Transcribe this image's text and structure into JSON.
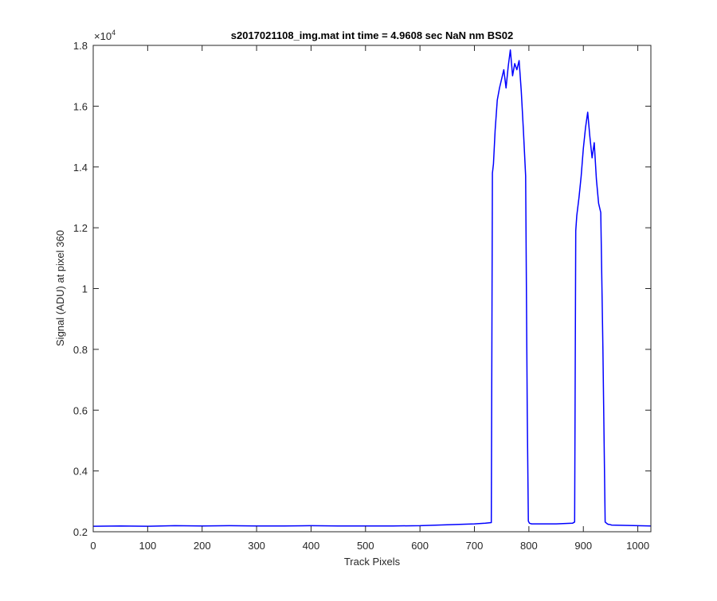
{
  "chart_data": {
    "type": "line",
    "title": "s2017021108_img.mat int time = 4.9608 sec  NaN nm BS02",
    "xlabel": "Track Pixels",
    "ylabel": "Signal (ADU) at pixel 360",
    "xlim": [
      0,
      1024
    ],
    "ylim": [
      2000,
      18000
    ],
    "xticks": [
      0,
      100,
      200,
      300,
      400,
      500,
      600,
      700,
      800,
      900,
      1000
    ],
    "xtick_labels": [
      "0",
      "100",
      "200",
      "300",
      "400",
      "500",
      "600",
      "700",
      "800",
      "900",
      "1000"
    ],
    "yticks": [
      2000,
      4000,
      6000,
      8000,
      10000,
      12000,
      14000,
      16000,
      18000
    ],
    "ytick_labels": [
      "0.2",
      "0.4",
      "0.6",
      "0.8",
      "1",
      "1.2",
      "1.4",
      "1.6",
      "1.8"
    ],
    "y_exponent_base": "×10",
    "y_exponent_power": "4",
    "grid": false,
    "series": [
      {
        "color": "#0000ff",
        "x": [
          0,
          50,
          100,
          150,
          200,
          250,
          300,
          350,
          400,
          450,
          500,
          550,
          600,
          650,
          700,
          720,
          731,
          733,
          735,
          738,
          742,
          746,
          750,
          754,
          758,
          762,
          766,
          770,
          774,
          778,
          782,
          786,
          790,
          794,
          797,
          799,
          801,
          805,
          850,
          880,
          884,
          886,
          888,
          892,
          896,
          900,
          904,
          908,
          912,
          916,
          920,
          924,
          928,
          932,
          936,
          940,
          944,
          946,
          948,
          952,
          1000,
          1024
        ],
        "y": [
          2180,
          2190,
          2180,
          2200,
          2190,
          2200,
          2190,
          2190,
          2200,
          2190,
          2190,
          2190,
          2200,
          2230,
          2260,
          2280,
          2300,
          13800,
          14100,
          15200,
          16200,
          16600,
          16900,
          17200,
          16600,
          17300,
          17850,
          17000,
          17400,
          17200,
          17500,
          16500,
          15200,
          13700,
          6000,
          2350,
          2280,
          2260,
          2260,
          2280,
          2320,
          11900,
          12400,
          13000,
          13700,
          14600,
          15300,
          15800,
          15000,
          14300,
          14800,
          13600,
          12800,
          12500,
          8000,
          2320,
          2260,
          2240,
          2240,
          2220,
          2200,
          2190
        ]
      }
    ]
  }
}
